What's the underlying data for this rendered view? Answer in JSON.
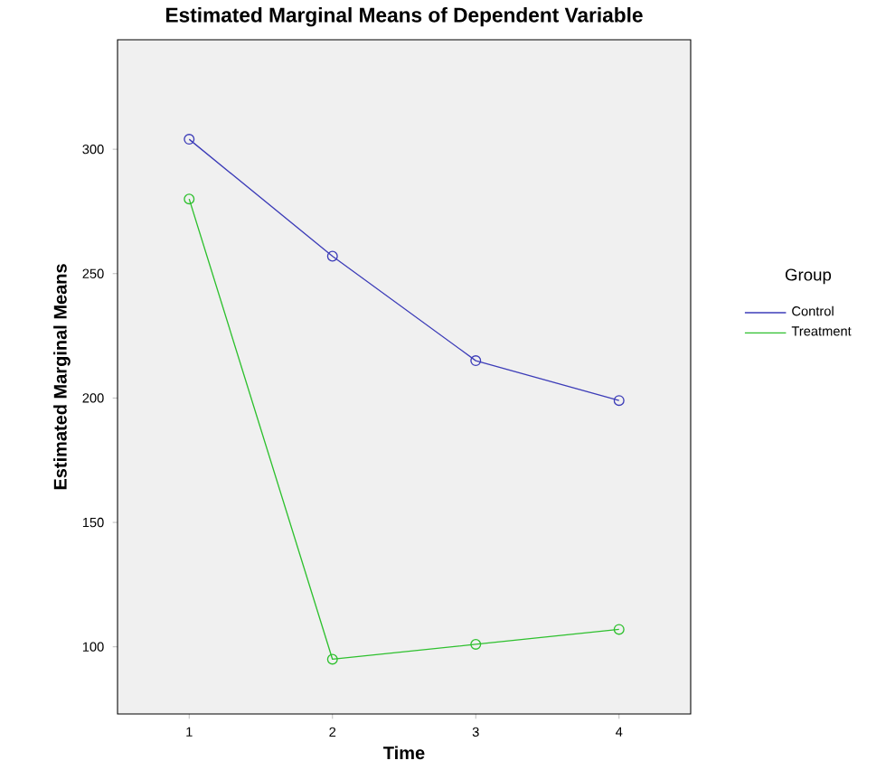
{
  "chart_data": {
    "type": "line",
    "title": "Estimated Marginal Means of Dependent Variable",
    "xlabel": "Time",
    "ylabel": "Estimated Marginal Means",
    "legend_title": "Group",
    "categories": [
      "1",
      "2",
      "3",
      "4"
    ],
    "series": [
      {
        "name": "Control",
        "color": "#3c3cb8",
        "values": [
          304,
          257,
          215,
          199
        ]
      },
      {
        "name": "Treatment",
        "color": "#2ec02e",
        "values": [
          280,
          95,
          101,
          107
        ]
      }
    ],
    "ylim": [
      73,
      344
    ],
    "yticks": [
      100,
      150,
      200,
      250,
      300
    ],
    "grid": false,
    "legend": "right",
    "marker": "circle",
    "line_style": "solid"
  }
}
